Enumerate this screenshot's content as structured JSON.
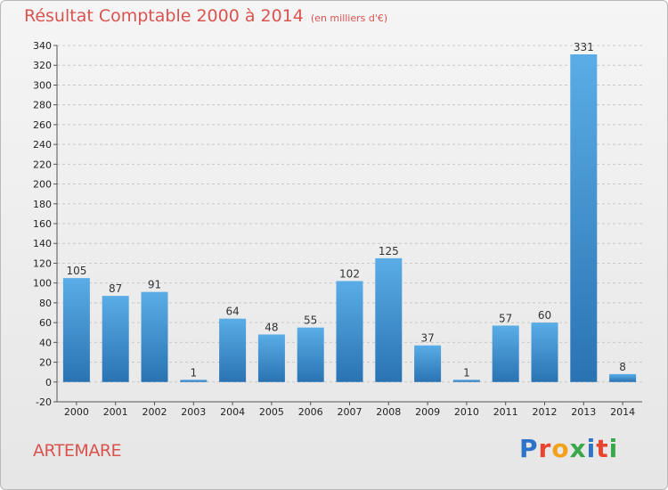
{
  "title": "Résultat Comptable 2000 à 2014",
  "subtitle": "(en milliers d'€)",
  "location": "ARTEMARE",
  "logo": {
    "text": "Proxiti",
    "colors": [
      "#2f73c9",
      "#e8442e",
      "#f4a11a",
      "#3aa84a",
      "#2f73c9",
      "#e8442e",
      "#3aa84a"
    ]
  },
  "colors": {
    "bar_top": "#5aade6",
    "bar_bottom": "#2a73b3",
    "label": "#333333",
    "axis_text": "#222222",
    "grid": "#c8c8c8"
  },
  "chart_data": {
    "type": "bar",
    "categories": [
      "2000",
      "2001",
      "2002",
      "2003",
      "2004",
      "2005",
      "2006",
      "2007",
      "2008",
      "2009",
      "2010",
      "2011",
      "2012",
      "2013",
      "2014"
    ],
    "values": [
      105,
      87,
      91,
      1,
      64,
      48,
      55,
      102,
      125,
      37,
      1,
      57,
      60,
      331,
      8
    ],
    "ylim": [
      -20,
      340
    ],
    "yticks": [
      -20,
      0,
      20,
      40,
      60,
      80,
      100,
      120,
      140,
      160,
      180,
      200,
      220,
      240,
      260,
      280,
      300,
      320,
      340
    ],
    "grid": true,
    "xlabel": "",
    "ylabel": ""
  }
}
